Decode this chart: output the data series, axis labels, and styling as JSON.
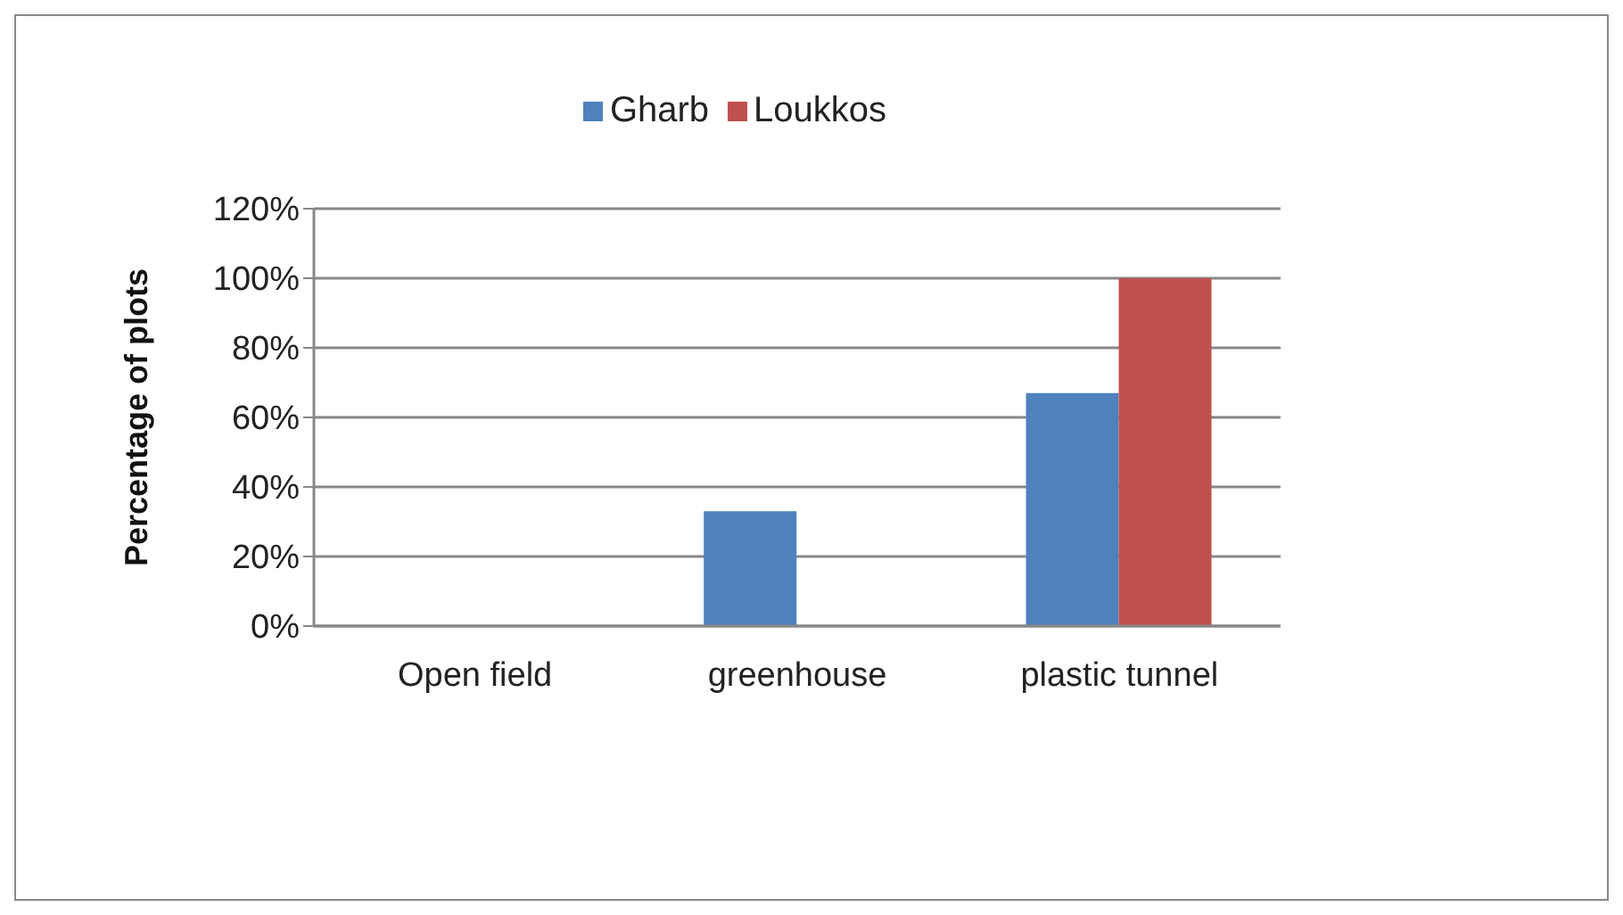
{
  "chart_data": {
    "type": "bar",
    "ylabel": "Percentage of plots",
    "categories": [
      "Open field",
      "greenhouse",
      "plastic tunnel"
    ],
    "series": [
      {
        "name": "Gharb",
        "color": "#4f81bd",
        "values": [
          0,
          33,
          67
        ]
      },
      {
        "name": "Loukkos",
        "color": "#c0504d",
        "values": [
          0,
          0,
          100
        ]
      }
    ],
    "ylim": [
      0,
      120
    ],
    "yticks": [
      {
        "value": 0,
        "label": "0%"
      },
      {
        "value": 20,
        "label": "20%"
      },
      {
        "value": 40,
        "label": "40%"
      },
      {
        "value": 60,
        "label": "60%"
      },
      {
        "value": 80,
        "label": "80%"
      },
      {
        "value": 100,
        "label": "100%"
      },
      {
        "value": 120,
        "label": "120%"
      }
    ],
    "grid": "y",
    "legend": "top"
  }
}
